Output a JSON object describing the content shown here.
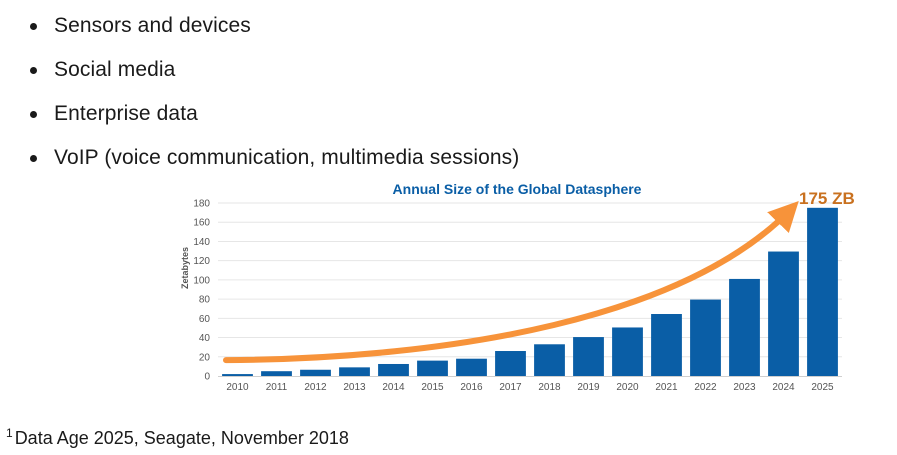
{
  "bullets": [
    "Sensors and devices",
    "Social media",
    "Enterprise data",
    "VoIP (voice communication, multimedia sessions)"
  ],
  "colors": {
    "bar": "#0a5ea6",
    "title": "#0a5ea6",
    "arrow": "#f7933a",
    "callout": "#c9711f",
    "axis_text": "#555555",
    "grid": "#e6e6e6"
  },
  "chart_data": {
    "type": "bar",
    "title": "Annual Size of the Global Datasphere",
    "xlabel": "",
    "ylabel": "Zetabytes",
    "ylim": [
      0,
      180
    ],
    "yticks": [
      0,
      20,
      40,
      60,
      80,
      100,
      120,
      140,
      160,
      180
    ],
    "categories": [
      "2010",
      "2011",
      "2012",
      "2013",
      "2014",
      "2015",
      "2016",
      "2017",
      "2018",
      "2019",
      "2020",
      "2021",
      "2022",
      "2023",
      "2024",
      "2025"
    ],
    "values": [
      2,
      5,
      6.5,
      9,
      12.5,
      16,
      18,
      26,
      33,
      40.5,
      50.5,
      64.5,
      79.5,
      101,
      129.5,
      175
    ],
    "annotation": "175 ZB",
    "trend_arrow": true,
    "grid": true
  },
  "footnote": {
    "marker": "1",
    "text": "Data Age 2025, Seagate, November 2018"
  }
}
